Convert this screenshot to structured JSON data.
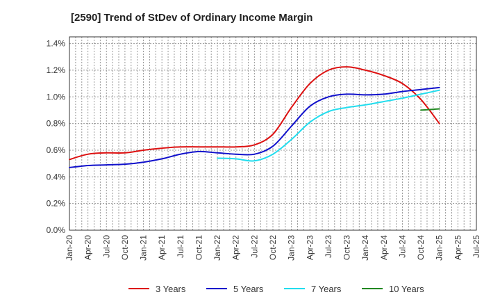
{
  "chart_data": {
    "type": "line",
    "title": "[2590]  Trend of StDev of Ordinary Income Margin",
    "xlabel": "",
    "ylabel": "",
    "x_ticks": [
      "Jan-20",
      "Apr-20",
      "Jul-20",
      "Oct-20",
      "Jan-21",
      "Apr-21",
      "Jul-21",
      "Oct-21",
      "Jan-22",
      "Apr-22",
      "Jul-22",
      "Oct-22",
      "Jan-23",
      "Apr-23",
      "Jul-23",
      "Oct-23",
      "Jan-24",
      "Apr-24",
      "Jul-24",
      "Oct-24",
      "Jan-25",
      "Apr-25",
      "Jul-25"
    ],
    "y_ticks": [
      "0.0%",
      "0.2%",
      "0.4%",
      "0.6%",
      "0.8%",
      "1.0%",
      "1.2%",
      "1.4%"
    ],
    "ylim": [
      0,
      1.45
    ],
    "y_unit": "%",
    "grid": true,
    "legend_position": "bottom",
    "series": [
      {
        "name": "3 Years",
        "color": "#dd1111",
        "x": [
          "Jan-20",
          "Apr-20",
          "Jul-20",
          "Oct-20",
          "Jan-21",
          "Apr-21",
          "Jul-21",
          "Oct-21",
          "Jan-22",
          "Apr-22",
          "Jul-22",
          "Oct-22",
          "Jan-23",
          "Apr-23",
          "Jul-23",
          "Oct-23",
          "Jan-24",
          "Apr-24",
          "Jul-24",
          "Oct-24",
          "Jan-25"
        ],
        "values": [
          0.53,
          0.57,
          0.58,
          0.58,
          0.6,
          0.615,
          0.625,
          0.625,
          0.625,
          0.625,
          0.64,
          0.72,
          0.92,
          1.1,
          1.2,
          1.225,
          1.2,
          1.16,
          1.1,
          0.98,
          0.8
        ]
      },
      {
        "name": "5 Years",
        "color": "#1111cc",
        "x": [
          "Jan-20",
          "Apr-20",
          "Jul-20",
          "Oct-20",
          "Jan-21",
          "Apr-21",
          "Jul-21",
          "Oct-21",
          "Jan-22",
          "Apr-22",
          "Jul-22",
          "Oct-22",
          "Jan-23",
          "Apr-23",
          "Jul-23",
          "Oct-23",
          "Jan-24",
          "Apr-24",
          "Jul-24",
          "Oct-24",
          "Jan-25"
        ],
        "values": [
          0.47,
          0.485,
          0.49,
          0.495,
          0.51,
          0.535,
          0.57,
          0.59,
          0.58,
          0.57,
          0.57,
          0.63,
          0.78,
          0.93,
          1.0,
          1.02,
          1.015,
          1.02,
          1.04,
          1.055,
          1.07
        ]
      },
      {
        "name": "7 Years",
        "color": "#22ddee",
        "x": [
          "Jan-22",
          "Apr-22",
          "Jul-22",
          "Oct-22",
          "Jan-23",
          "Apr-23",
          "Jul-23",
          "Oct-23",
          "Jan-24",
          "Apr-24",
          "Jul-24",
          "Oct-24",
          "Jan-25"
        ],
        "values": [
          0.54,
          0.535,
          0.52,
          0.57,
          0.68,
          0.81,
          0.89,
          0.92,
          0.94,
          0.965,
          0.99,
          1.02,
          1.05
        ]
      },
      {
        "name": "10 Years",
        "color": "#228822",
        "x": [
          "Oct-24",
          "Jan-25"
        ],
        "values": [
          0.9,
          0.91
        ]
      }
    ]
  }
}
